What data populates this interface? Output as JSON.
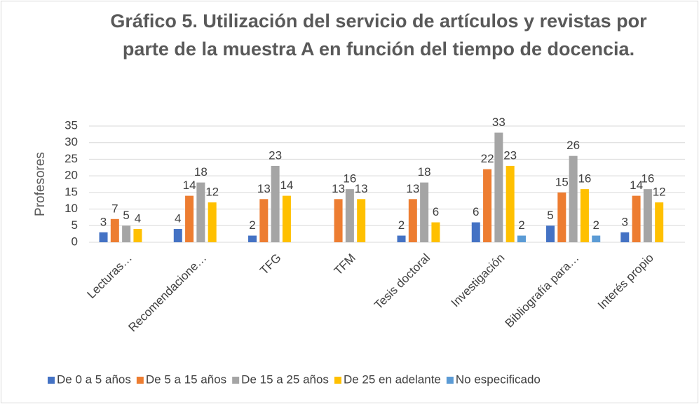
{
  "chart_data": {
    "type": "bar",
    "title": [
      "Gráfico 5. Utilización del servicio de artículos y revistas por",
      "parte de la muestra A en función del tiempo de docencia."
    ],
    "y_label": "Profesores",
    "categories": [
      "Lecturas…",
      "Recomendacione…",
      "TFG",
      "TFM",
      "Tesis doctoral",
      "Investigación",
      "Bibliografía para…",
      "Interés propio"
    ],
    "series": [
      {
        "name": "De 0 a 5 años",
        "color": "#4472c4",
        "values": [
          3,
          4,
          2,
          null,
          2,
          6,
          5,
          3
        ]
      },
      {
        "name": "De 5 a 15 años",
        "color": "#ed7d31",
        "values": [
          7,
          14,
          13,
          13,
          13,
          22,
          15,
          14
        ]
      },
      {
        "name": "De 15 a 25 años",
        "color": "#a5a5a5",
        "values": [
          5,
          18,
          23,
          16,
          18,
          33,
          26,
          16
        ]
      },
      {
        "name": "De 25 en adelante",
        "color": "#ffc000",
        "values": [
          4,
          12,
          14,
          13,
          6,
          23,
          16,
          12
        ]
      },
      {
        "name": "No especificado",
        "color": "#5b9bd5",
        "values": [
          null,
          null,
          null,
          null,
          null,
          2,
          2,
          null
        ]
      }
    ],
    "ylim": [
      0,
      35
    ],
    "yticks": [
      0,
      5,
      10,
      15,
      20,
      25,
      30,
      35
    ],
    "grid": true,
    "legend": "bottom"
  }
}
